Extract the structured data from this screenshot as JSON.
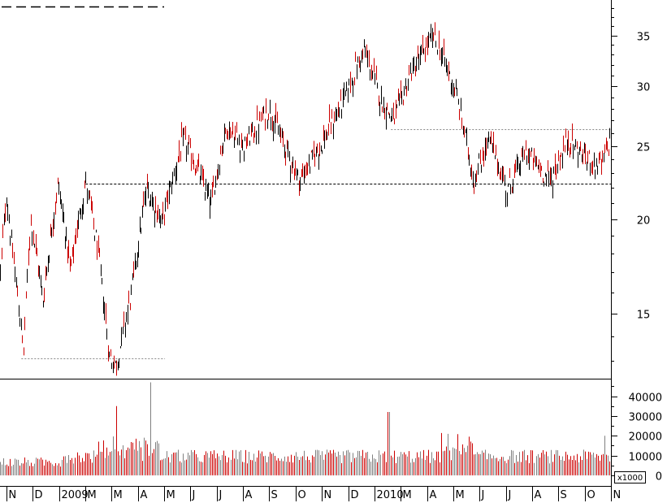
{
  "chart_data": {
    "type": "candlestick",
    "x_labels": [
      "N",
      "D",
      "2009",
      "M",
      "M",
      "A",
      "M",
      "J",
      "J",
      "A",
      "S",
      "O",
      "N",
      "D",
      "2010",
      "M",
      "A",
      "M",
      "J",
      "J",
      "A",
      "S",
      "O",
      "N"
    ],
    "price_axis": {
      "scale": "log",
      "ticks": [
        15,
        20,
        25,
        30,
        35
      ],
      "ylim": [
        12.3,
        39
      ]
    },
    "volume_axis": {
      "ticks": [
        0,
        10000,
        20000,
        30000,
        40000
      ],
      "unit": "x1000",
      "ylim": [
        0,
        48000
      ]
    },
    "price_anchors": [
      {
        "t": 0.0,
        "v": 17.0
      },
      {
        "t": 0.01,
        "v": 21.5
      },
      {
        "t": 0.018,
        "v": 18.5
      },
      {
        "t": 0.038,
        "v": 13.3
      },
      {
        "t": 0.05,
        "v": 20.0
      },
      {
        "t": 0.07,
        "v": 15.6
      },
      {
        "t": 0.095,
        "v": 22.3
      },
      {
        "t": 0.115,
        "v": 17.0
      },
      {
        "t": 0.14,
        "v": 22.4
      },
      {
        "t": 0.16,
        "v": 18.0
      },
      {
        "t": 0.178,
        "v": 13.2
      },
      {
        "t": 0.19,
        "v": 12.8
      },
      {
        "t": 0.215,
        "v": 16.0
      },
      {
        "t": 0.24,
        "v": 22.0
      },
      {
        "t": 0.265,
        "v": 19.8
      },
      {
        "t": 0.3,
        "v": 25.5
      },
      {
        "t": 0.33,
        "v": 22.5
      },
      {
        "t": 0.345,
        "v": 21.0
      },
      {
        "t": 0.37,
        "v": 26.5
      },
      {
        "t": 0.4,
        "v": 25.0
      },
      {
        "t": 0.44,
        "v": 28.0
      },
      {
        "t": 0.465,
        "v": 25.0
      },
      {
        "t": 0.49,
        "v": 22.5
      },
      {
        "t": 0.53,
        "v": 25.5
      },
      {
        "t": 0.56,
        "v": 28.5
      },
      {
        "t": 0.595,
        "v": 33.5
      },
      {
        "t": 0.625,
        "v": 28.5
      },
      {
        "t": 0.645,
        "v": 27.0
      },
      {
        "t": 0.67,
        "v": 31.0
      },
      {
        "t": 0.71,
        "v": 35.0
      },
      {
        "t": 0.745,
        "v": 29.5
      },
      {
        "t": 0.775,
        "v": 22.5
      },
      {
        "t": 0.8,
        "v": 25.5
      },
      {
        "t": 0.83,
        "v": 21.8
      },
      {
        "t": 0.86,
        "v": 24.5
      },
      {
        "t": 0.9,
        "v": 22.5
      },
      {
        "t": 0.93,
        "v": 25.5
      },
      {
        "t": 0.96,
        "v": 24.0
      },
      {
        "t": 0.985,
        "v": 23.5
      },
      {
        "t": 1.0,
        "v": 25.8
      }
    ],
    "reference_lines": [
      {
        "style": "dashed",
        "value": 22.3,
        "x_from": 0.14,
        "x_to": 1.0
      },
      {
        "style": "dotted",
        "value": 13.1,
        "x_from": 0.035,
        "x_to": 0.27
      },
      {
        "style": "dotted",
        "value": 26.3,
        "x_from": 0.64,
        "x_to": 1.0
      }
    ],
    "volume_spikes": [
      {
        "t": 0.19,
        "v": 35000
      },
      {
        "t": 0.245,
        "v": 47000
      },
      {
        "t": 0.635,
        "v": 32000
      },
      {
        "t": 0.99,
        "v": 20000
      }
    ],
    "up_color": "#000000",
    "down_color": "#cc0000",
    "volume_color": "#808080"
  },
  "legend": {
    "style": "dashed",
    "color": "#000000"
  }
}
